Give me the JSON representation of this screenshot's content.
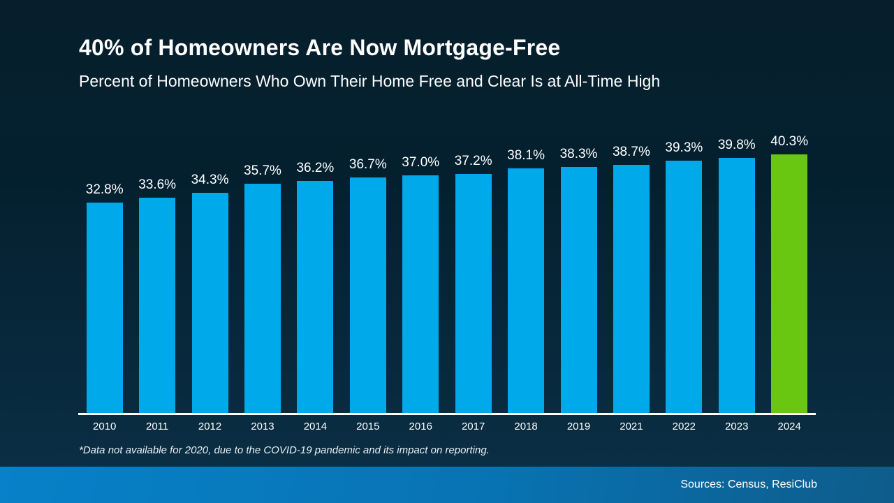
{
  "header": {
    "title": "40% of Homeowners Are Now Mortgage-Free",
    "subtitle": "Percent of Homeowners Who Own Their Home Free and Clear Is at All-Time High"
  },
  "footnote": "*Data not available for 2020, due to the COVID-19 pandemic and its impact on reporting.",
  "footer": {
    "sources": "Sources: Census, ResiClub"
  },
  "chart_data": {
    "type": "bar",
    "title": "40% of Homeowners Are Now Mortgage-Free",
    "subtitle": "Percent of Homeowners Who Own Their Home Free and Clear Is at All-Time High",
    "categories": [
      "2010",
      "2011",
      "2012",
      "2013",
      "2014",
      "2015",
      "2016",
      "2017",
      "2018",
      "2019",
      "2021",
      "2022",
      "2023",
      "2024"
    ],
    "values": [
      32.8,
      33.6,
      34.3,
      35.7,
      36.2,
      36.7,
      37.0,
      37.2,
      38.1,
      38.3,
      38.7,
      39.3,
      39.8,
      40.3
    ],
    "value_suffix": "%",
    "xlabel": "",
    "ylabel": "",
    "ylim": [
      0,
      40.3
    ],
    "grid": false,
    "legend": false,
    "bar_color": "#00aaea",
    "highlight_color": "#69c712",
    "highlight_index": 13,
    "axis_line_color": "#ffffff",
    "label_color": "#ffffff"
  },
  "colors": {
    "background_top": "#071f2c",
    "background_bottom": "#0b3348",
    "footer_left": "#0781c9",
    "footer_right": "#0e5c8a",
    "text": "#ffffff"
  }
}
